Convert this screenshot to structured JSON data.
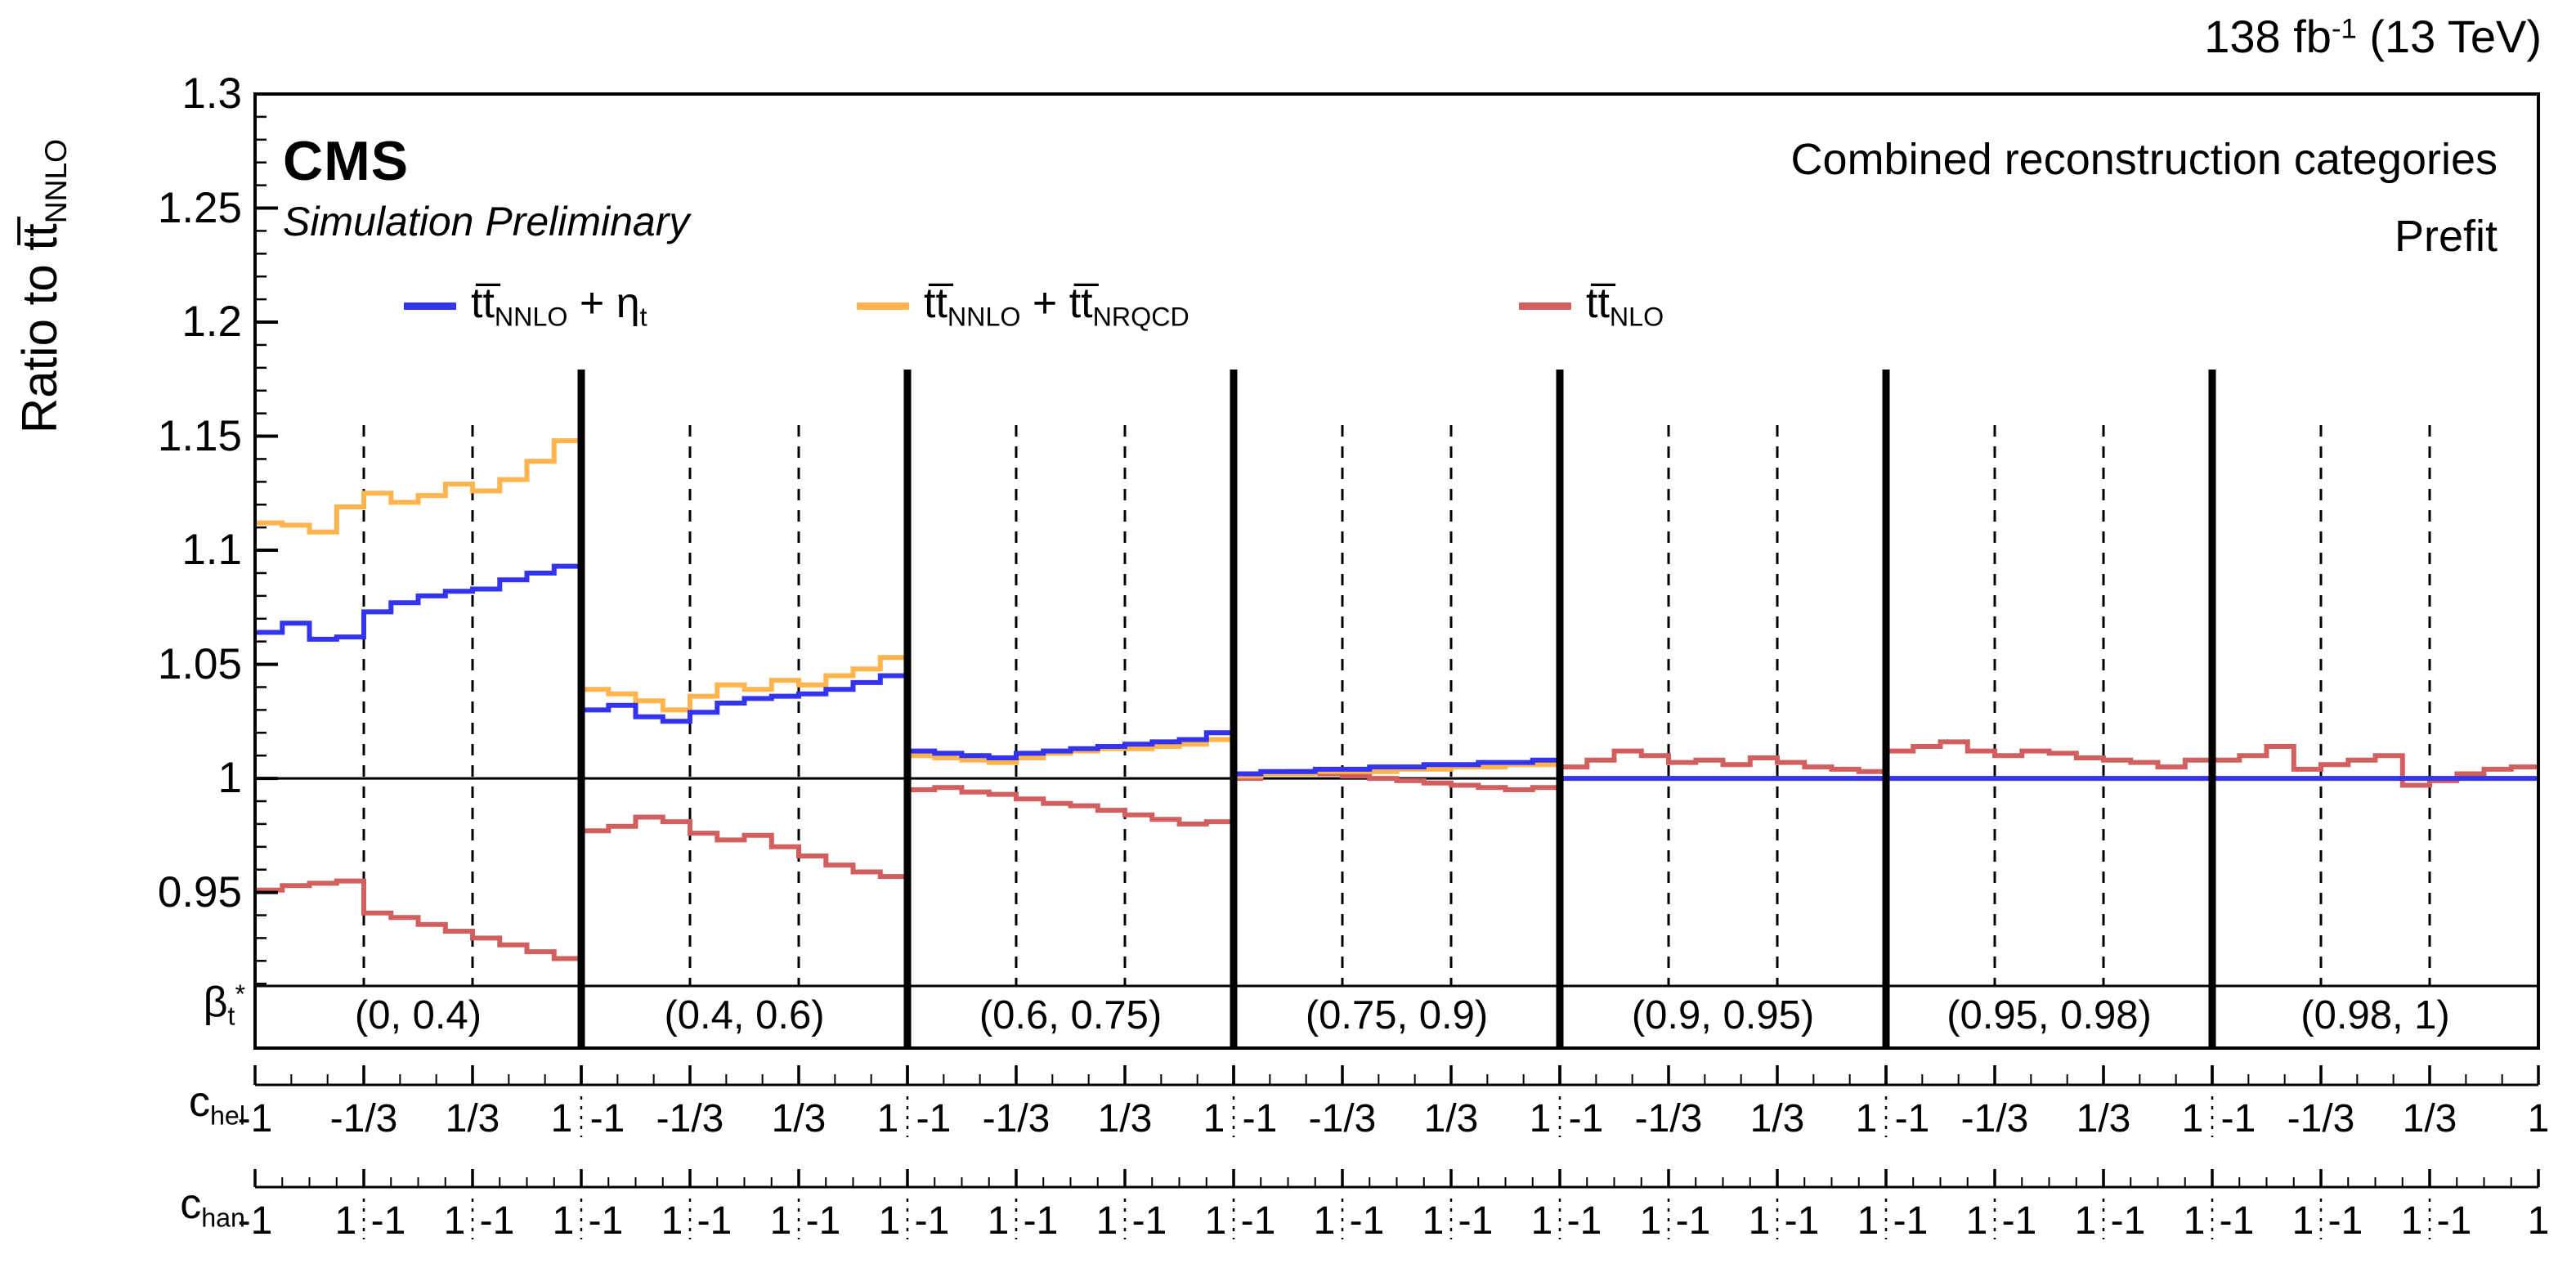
{
  "header": {
    "lumi": [
      {
        "t": "138 fb"
      },
      {
        "p": "-1"
      },
      {
        "t": " (13 TeV)"
      }
    ]
  },
  "plot_labels": {
    "experiment": "CMS",
    "experiment_sub": "Simulation Preliminary",
    "category": "Combined reconstruction categories",
    "fit_state": "Prefit",
    "y_title": [
      {
        "t": "Ratio to tt̅"
      },
      {
        "s": "NNLO"
      }
    ],
    "beta_axis": [
      {
        "t": "β"
      },
      {
        "s": "t"
      },
      {
        "p": "*"
      }
    ],
    "chel_axis": [
      {
        "t": "c"
      },
      {
        "s": "hel"
      }
    ],
    "chan_axis": [
      {
        "t": "c"
      },
      {
        "s": "han"
      }
    ]
  },
  "legend": {
    "items": [
      {
        "color": "#3333f0",
        "label": [
          {
            "t": "tt̅"
          },
          {
            "s": "NNLO"
          },
          {
            "t": " + η"
          },
          {
            "s": "t"
          }
        ]
      },
      {
        "color": "#ffb44e",
        "label": [
          {
            "t": "tt̅"
          },
          {
            "s": "NNLO"
          },
          {
            "t": " + tt̅"
          },
          {
            "s": "NRQCD"
          }
        ]
      },
      {
        "color": "#d25f5f",
        "label": [
          {
            "t": "tt̅"
          },
          {
            "s": "NLO"
          }
        ]
      }
    ]
  },
  "chart_data": {
    "type": "line",
    "subtype": "step-histogram-ratio",
    "title": "",
    "xlabel": "",
    "ylabel": "Ratio to ttbar_NNLO",
    "ylim": [
      0.909,
      1.3
    ],
    "yticks": [
      0.95,
      1,
      1.05,
      1.1,
      1.15,
      1.2,
      1.25,
      1.3
    ],
    "ytick_labels": [
      "0.95",
      "1",
      "1.05",
      "1.1",
      "1.15",
      "1.2",
      "1.25",
      "1.3"
    ],
    "reference_line": 1,
    "grid": false,
    "legend_position": "top-inside",
    "beta_bins": [
      "(0, 0.4)",
      "(0.4, 0.6)",
      "(0.6, 0.75)",
      "(0.75, 0.9)",
      "(0.9, 0.95)",
      "(0.95, 0.98)",
      "(0.98, 1)"
    ],
    "x_structure": {
      "beta_panels": 7,
      "chel_bins_per_panel": 3,
      "chan_bins_per_chel_bin": 4
    },
    "bins_per_panel": 12,
    "chel_tick_labels": [
      "-1",
      "-1/3",
      "1/3",
      "1"
    ],
    "chan_edge_labels": [
      "-1",
      "1"
    ],
    "series": [
      {
        "name": "ttbar_NNLO + eta_t",
        "color": "#3333f0",
        "values": [
          [
            1.064,
            1.068,
            1.061,
            1.062,
            1.073,
            1.077,
            1.08,
            1.082,
            1.083,
            1.087,
            1.09,
            1.093
          ],
          [
            1.03,
            1.032,
            1.027,
            1.025,
            1.029,
            1.033,
            1.035,
            1.036,
            1.037,
            1.039,
            1.042,
            1.045
          ],
          [
            1.012,
            1.011,
            1.01,
            1.009,
            1.011,
            1.012,
            1.013,
            1.014,
            1.015,
            1.016,
            1.017,
            1.02
          ],
          [
            1.002,
            1.003,
            1.003,
            1.004,
            1.004,
            1.005,
            1.005,
            1.006,
            1.006,
            1.007,
            1.007,
            1.008
          ],
          [
            1.0,
            1.0,
            1.0,
            1.0,
            1.0,
            1.0,
            1.0,
            1.0,
            1.0,
            1.0,
            1.0,
            1.0
          ],
          [
            1.0,
            1.0,
            1.0,
            1.0,
            1.0,
            1.0,
            1.0,
            1.0,
            1.0,
            1.0,
            1.0,
            1.0
          ],
          [
            1.0,
            1.0,
            1.0,
            1.0,
            1.0,
            1.0,
            1.0,
            1.0,
            1.0,
            1.0,
            1.0,
            1.0
          ]
        ]
      },
      {
        "name": "ttbar_NNLO + ttbar_NRQCD",
        "color": "#ffb44e",
        "values": [
          [
            1.112,
            1.111,
            1.108,
            1.119,
            1.125,
            1.121,
            1.124,
            1.129,
            1.126,
            1.131,
            1.139,
            1.148
          ],
          [
            1.039,
            1.037,
            1.034,
            1.03,
            1.036,
            1.041,
            1.039,
            1.043,
            1.041,
            1.045,
            1.048,
            1.053
          ],
          [
            1.01,
            1.009,
            1.008,
            1.007,
            1.009,
            1.011,
            1.012,
            1.013,
            1.013,
            1.014,
            1.015,
            1.017
          ],
          [
            1.001,
            1.002,
            1.002,
            1.003,
            1.003,
            1.003,
            1.004,
            1.004,
            1.005,
            1.005,
            1.006,
            1.006
          ],
          [
            1.0,
            1.0,
            1.0,
            1.0,
            1.0,
            1.0,
            1.0,
            1.0,
            1.0,
            1.0,
            1.0,
            1.0
          ],
          [
            1.0,
            1.0,
            1.0,
            1.0,
            1.0,
            1.0,
            1.0,
            1.0,
            1.0,
            1.0,
            1.0,
            1.0
          ],
          [
            1.0,
            1.0,
            1.0,
            1.0,
            1.0,
            1.0,
            1.0,
            1.0,
            1.0,
            1.0,
            1.0,
            1.0
          ]
        ]
      },
      {
        "name": "ttbar_NLO",
        "color": "#d25f5f",
        "values": [
          [
            0.951,
            0.953,
            0.954,
            0.955,
            0.941,
            0.939,
            0.936,
            0.933,
            0.93,
            0.927,
            0.924,
            0.921
          ],
          [
            0.977,
            0.979,
            0.983,
            0.981,
            0.976,
            0.973,
            0.975,
            0.97,
            0.966,
            0.962,
            0.959,
            0.957
          ],
          [
            0.995,
            0.996,
            0.994,
            0.993,
            0.991,
            0.989,
            0.988,
            0.986,
            0.984,
            0.982,
            0.98,
            0.981
          ],
          [
            1.0,
            1.002,
            1.003,
            1.002,
            1.001,
            1.0,
            0.999,
            0.998,
            0.997,
            0.996,
            0.995,
            0.996
          ],
          [
            1.005,
            1.008,
            1.012,
            1.01,
            1.007,
            1.008,
            1.006,
            1.009,
            1.007,
            1.005,
            1.004,
            1.003
          ],
          [
            1.012,
            1.014,
            1.016,
            1.012,
            1.01,
            1.012,
            1.011,
            1.009,
            1.008,
            1.007,
            1.005,
            1.008
          ],
          [
            1.008,
            1.01,
            1.014,
            1.004,
            1.006,
            1.008,
            1.01,
            0.997,
            0.999,
            1.002,
            1.004,
            1.005
          ]
        ]
      }
    ]
  }
}
